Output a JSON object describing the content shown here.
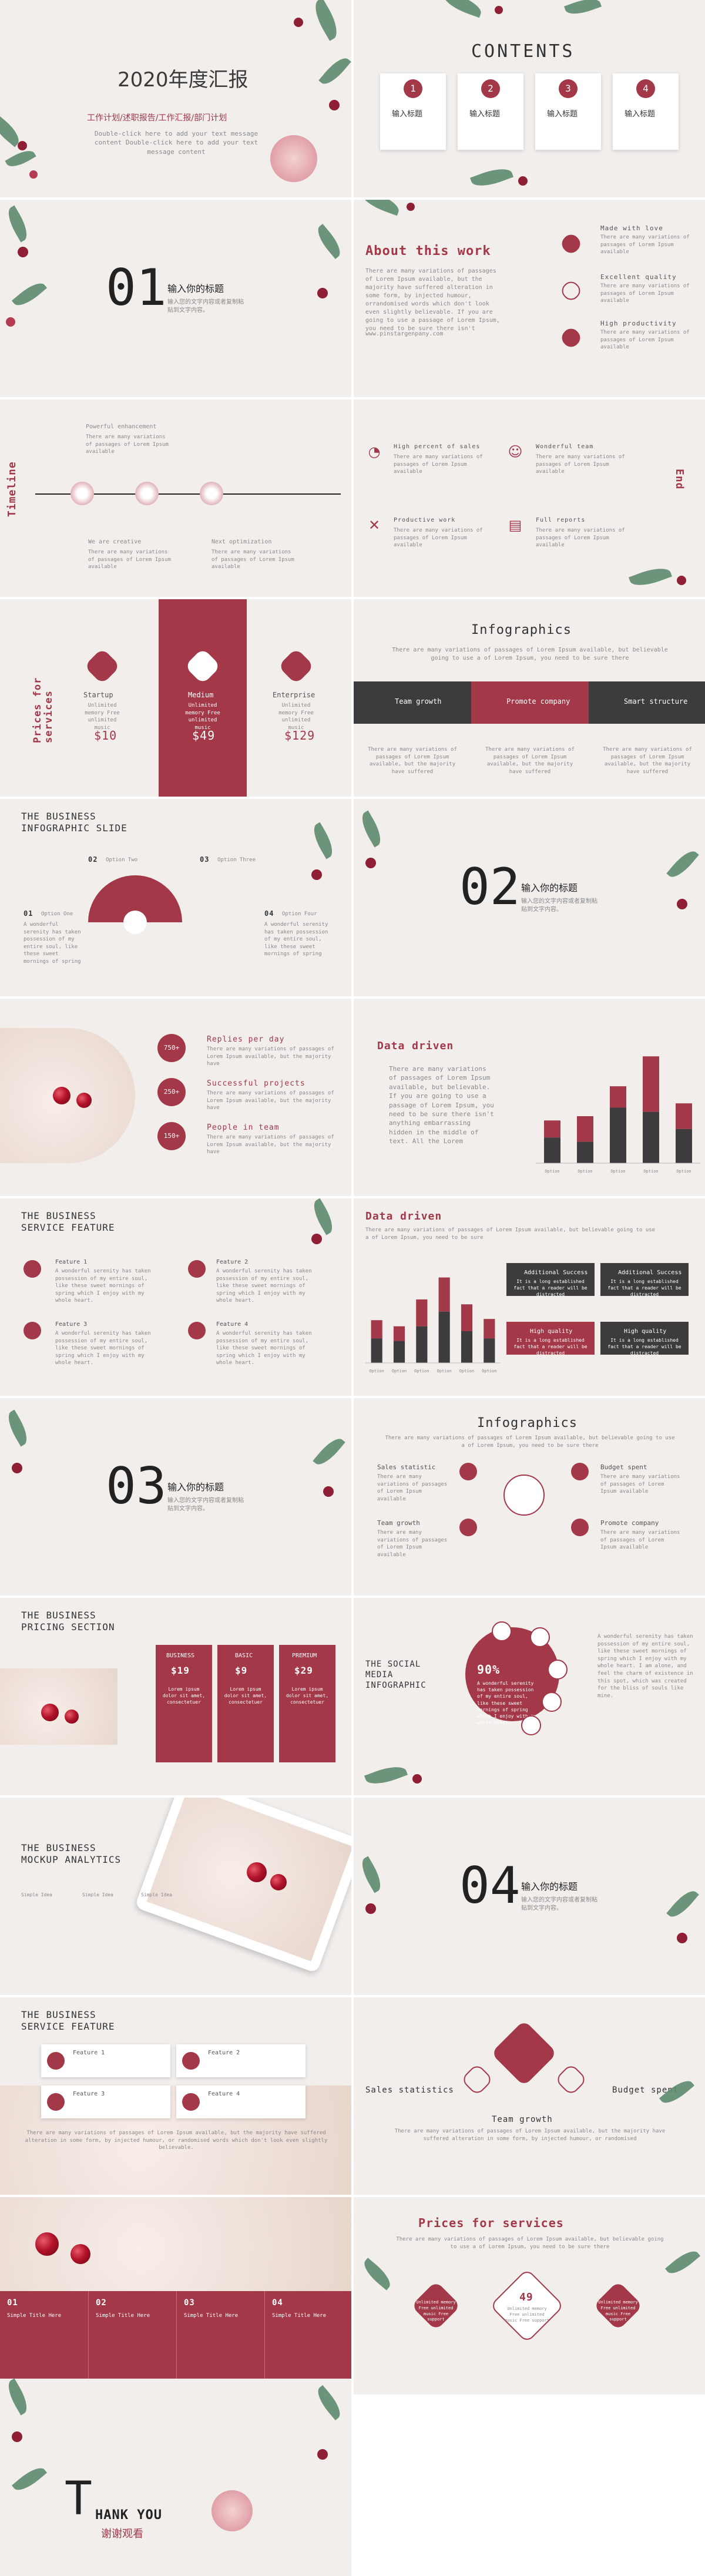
{
  "s1": {
    "title": "2020年度汇报",
    "subtitle": "工作计划/述职报告/工作汇报/部门计划",
    "desc": "Double-click here to add your text message content Double-click here to add your text message content"
  },
  "s2": {
    "title": "CONTENTS",
    "items": [
      {
        "num": "1",
        "label": "输入标题"
      },
      {
        "num": "2",
        "label": "输入标题"
      },
      {
        "num": "3",
        "label": "输入标题"
      },
      {
        "num": "4",
        "label": "输入标题"
      }
    ]
  },
  "s3": {
    "num": "01",
    "title": "输入你的标题",
    "desc": "输入您的文字内容或者复制粘贴到文字内容。"
  },
  "s4": {
    "title": "About this work",
    "body": "There are many variations of passages of Lorem Ipsum available, but the majority have suffered alteration in some form, by injected humour, orrandomised words which don't look even slightly believable. If you are going to use a passage of Lorem Ipsum, you need to be sure there isn't",
    "url": "www.pinstargenpany.com",
    "items": [
      {
        "title": "Made with love",
        "desc": "There are many variations of passages of Lorem Ipsum available"
      },
      {
        "title": "Excellent quality",
        "desc": "There are many variations of passages of Lorem Ipsum available"
      },
      {
        "title": "High productivity",
        "desc": "There are many variations of passages of Lorem Ipsum available"
      }
    ]
  },
  "s5": {
    "side": "Timeline",
    "end": "End",
    "top1": "Powerful enhancement",
    "top2": "Powerful enhancement",
    "bottom1": "We are creative",
    "bottom2": "Next optimization",
    "desc": "There are many variations of passages of Lorem Ipsum available"
  },
  "s6": {
    "items": [
      {
        "title": "High percent of sales",
        "desc": "There are many variations of passages of Lorem Ipsum available"
      },
      {
        "title": "Wonderful team",
        "desc": "There are many variations of passages of Lorem Ipsum available"
      },
      {
        "title": "Productive work",
        "desc": "There are many variations of passages of Lorem Ipsum available"
      },
      {
        "title": "Full reports",
        "desc": "There are many variations of passages of Lorem Ipsum available"
      }
    ]
  },
  "s7": {
    "side": "Prices for services",
    "cols": [
      {
        "name": "Startup",
        "price": "$10",
        "desc": "Unlimited memory Free unlimited music"
      },
      {
        "name": "Medium",
        "price": "$49",
        "desc": "Unlimited memory Free unlimited music"
      },
      {
        "name": "Enterprise",
        "price": "$129",
        "desc": "Unlimited memory Free unlimited music"
      }
    ]
  },
  "s8": {
    "title": "Infographics",
    "sub": "There are many variations of passages of Lorem Ipsum available, but believable going to use a of Lorem Ipsum, you need to be sure there",
    "tabs": [
      "Team growth",
      "Promote company",
      "Smart structure"
    ],
    "desc": "There are many variations of passages of Lorem Ipsum available, but the majority have suffered"
  },
  "s9": {
    "title1": "THE BUSINESS",
    "title2": "INFOGRAPHIC SLIDE",
    "opts": [
      {
        "num": "01",
        "label": "Option One"
      },
      {
        "num": "02",
        "label": "Option Two"
      },
      {
        "num": "03",
        "label": "Option Three"
      },
      {
        "num": "04",
        "label": "Option Four"
      }
    ],
    "desc": "A wonderful serenity has taken possession of my entire soul, like these sweet mornings of spring"
  },
  "s10": {
    "num": "02",
    "title": "输入你的标题",
    "desc": "输入您的文字内容或者复制粘贴到文字内容。"
  },
  "s11": {
    "items": [
      {
        "badge": "750+",
        "title": "Replies per day",
        "desc": "There are many variations of passages of Lorem Ipsum available, but the majority have"
      },
      {
        "badge": "250+",
        "title": "Successful projects",
        "desc": "There are many variations of passages of Lorem Ipsum available, but the majority have"
      },
      {
        "badge": "150+",
        "title": "People in team",
        "desc": "There are many variations of passages of Lorem Ipsum available, but the majority have"
      }
    ]
  },
  "s12": {
    "title": "Data driven",
    "body": "There are many variations of passages of Lorem Ipsum available, but believable. If you are going to use a passage of Lorem Ipsum, you need to be sure there isn't anything embarrassing hidden in the middle of text. All the Lorem"
  },
  "chart_data": [
    {
      "type": "bar",
      "categories": [
        "Option",
        "Option",
        "Option",
        "Option",
        "Option"
      ],
      "series": [
        {
          "values": [
            2.0,
            2.2,
            3.6,
            5.0,
            2.8
          ]
        },
        {
          "values": [
            1.2,
            1.0,
            2.6,
            2.4,
            1.6
          ]
        }
      ]
    },
    {
      "type": "bar",
      "categories": [
        "Option",
        "Option",
        "Option",
        "Option",
        "Option",
        "Option"
      ],
      "series": [
        {
          "values": [
            3.5,
            3.0,
            5.2,
            7.0,
            4.8,
            3.6
          ]
        },
        {
          "values": [
            2.0,
            1.8,
            3.0,
            4.2,
            2.6,
            2.0
          ]
        }
      ]
    }
  ],
  "s13": {
    "title1": "THE BUSINESS",
    "title2": "SERVICE FEATURE",
    "features": [
      "Feature 1",
      "Feature 2",
      "Feature 3",
      "Feature 4"
    ],
    "desc": "A wonderful serenity has taken possession of my entire soul, like these sweet mornings of spring which I enjoy with my whole heart."
  },
  "s14": {
    "title": "Data driven",
    "sub": "There are many variations of passages of Lorem Ipsum available, but believable going to use a of Lorem Ipsum, you need to be sure",
    "boxes": [
      {
        "title": "Additional Success",
        "desc": "It is a long established fact that a reader will be distracted"
      },
      {
        "title": "Additional Success",
        "desc": "It is a long established fact that a reader will be distracted"
      },
      {
        "title": "High quality",
        "desc": "It is a long established fact that a reader will be distracted"
      },
      {
        "title": "High quality",
        "desc": "It is a long established fact that a reader will be distracted"
      }
    ]
  },
  "s15": {
    "num": "03",
    "title": "输入你的标题",
    "desc": "输入您的文字内容或者复制粘贴到文字内容。"
  },
  "s16": {
    "title": "Infographics",
    "sub": "There are many variations of passages of Lorem Ipsum available, but believable going to use a of Lorem Ipsum, you need to be sure there",
    "items": [
      {
        "title": "Sales statistic",
        "desc": "There are many variations of passages of Lorem Ipsum available"
      },
      {
        "title": "Budget spent",
        "desc": "There are many variations of passages of Lorem Ipsum available"
      },
      {
        "title": "Team growth",
        "desc": "There are many variations of passages of Lorem Ipsum available"
      },
      {
        "title": "Promote company",
        "desc": "There are many variations of passages of Lorem Ipsum available"
      }
    ]
  },
  "s17": {
    "title1": "THE BUSINESS",
    "title2": "PRICING SECTION",
    "cols": [
      {
        "name": "BUSINESS",
        "price": "$19"
      },
      {
        "name": "BASIC",
        "price": "$9"
      },
      {
        "name": "PREMIUM",
        "price": "$29"
      }
    ],
    "desc": "Lorem ipsum dolor sit amet, consectetuer"
  },
  "s18": {
    "title1": "THE SOCIAL",
    "title2": "MEDIA",
    "title3": "INFOGRAPHIC",
    "percent": "90%",
    "desc": "A wonderful serenity has taken possession of my entire soul, like these sweet mornings of spring which I enjoy with my whole heart.",
    "right": "A wonderful serenity has taken possession of my entire soul, like these sweet mornings of spring which I enjoy with my whole heart. I am alone, and feel the charm of existence in this spot, which was created for the bliss of souls like mine."
  },
  "s19": {
    "title1": "THE BUSINESS",
    "title2": "MOCKUP ANALYTICS",
    "items": [
      "Simple Idea",
      "Simple Idea",
      "Simple Idea"
    ],
    "desc": "Lorem ipsum dolor sit amet"
  },
  "s20": {
    "num": "04",
    "title": "输入你的标题",
    "desc": "输入您的文字内容或者复制粘贴到文字内容。"
  },
  "s21": {
    "title1": "THE BUSINESS",
    "title2": "SERVICE FEATURE",
    "features": [
      "Feature 1",
      "Feature 2",
      "Feature 3",
      "Feature 4"
    ],
    "desc": "There are many variations of passages of Lorem Ipsum available, but the majority have suffered alteration in some form, by injected humour, or randomised words which don't look even slightly believable."
  },
  "s22": {
    "left": "Sales statistics",
    "right": "Budget spent",
    "bottom": "Team growth",
    "desc": "There are many variations of passages of Lorem Ipsum available, but the majority have suffered alteration in some form, by injected humour, or randomised"
  },
  "s23": {
    "cols": [
      {
        "num": "01",
        "title": "Simple Title Here"
      },
      {
        "num": "02",
        "title": "Simple Title Here"
      },
      {
        "num": "03",
        "title": "Simple Title Here"
      },
      {
        "num": "04",
        "title": "Simple Title Here"
      }
    ]
  },
  "s24": {
    "title": "Prices for services",
    "sub": "There are many variations of passages of Lorem Ipsum available, but believable going to use a of Lorem Ipsum, you need to be sure there",
    "price": "49",
    "side": "Unlimited memory Free unlimited music Free support"
  },
  "s25": {
    "t": "T",
    "thank": "HANK YOU",
    "cn": "谢谢观看"
  }
}
